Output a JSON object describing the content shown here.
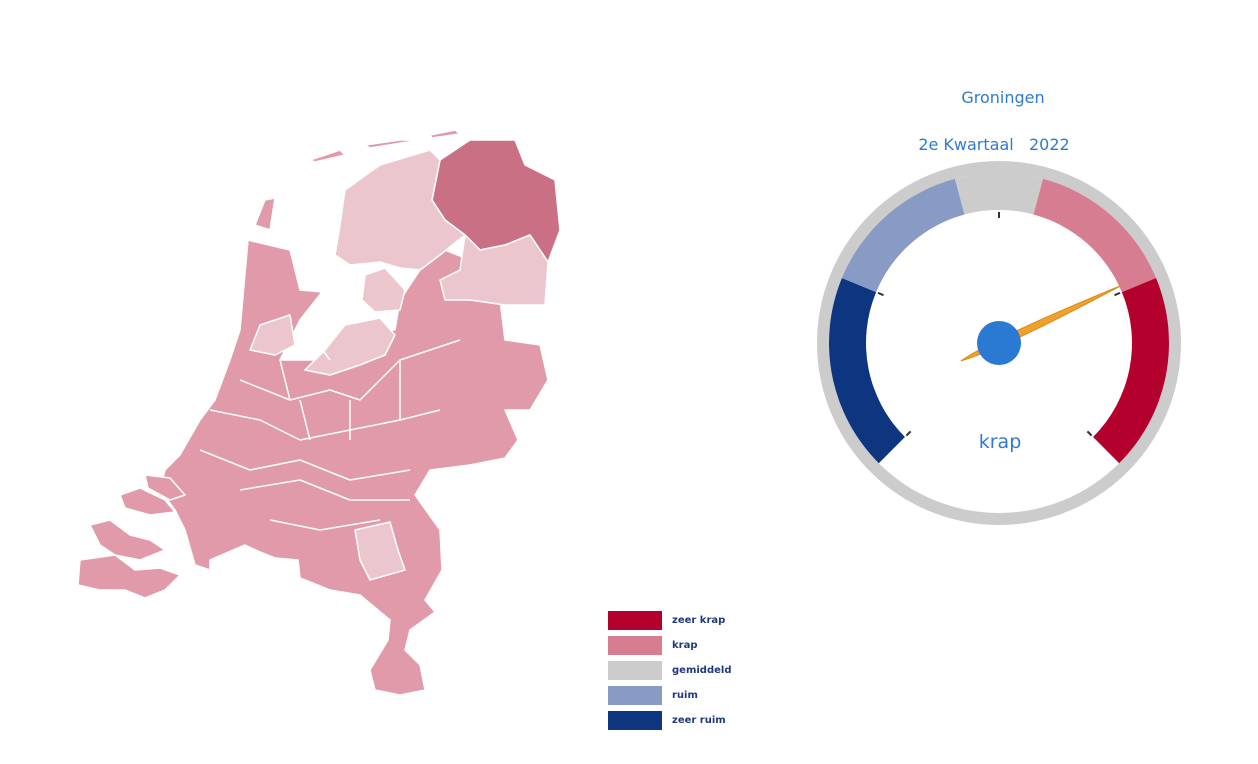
{
  "chart_data": {
    "type": "gauge",
    "title": "Groningen",
    "subtitle": "2e Kwartaal   2022",
    "value_label": "krap",
    "value_fraction": 0.74,
    "bands": [
      {
        "label": "zeer ruim",
        "from": 0,
        "to": 0.25,
        "color": "#0d3580"
      },
      {
        "label": "ruim",
        "from": 0.25,
        "to": 0.4444,
        "color": "#879bc4"
      },
      {
        "label": "gemiddeld",
        "from": 0.4444,
        "to": 0.5556,
        "color": "#cccccc"
      },
      {
        "label": "krap",
        "from": 0.5556,
        "to": 0.75,
        "color": "#d77d91"
      },
      {
        "label": "zeer krap",
        "from": 0.75,
        "to": 1,
        "color": "#b3002d"
      }
    ],
    "ticks": [
      0,
      0.25,
      0.5,
      0.75,
      1
    ],
    "map": {
      "regions": [
        {
          "name": "Groningen",
          "class": "zeer krap-ish",
          "color": "#c97085"
        },
        {
          "name": "Friesland",
          "color": "#ebc6cd"
        },
        {
          "name": "Drenthe",
          "color": "#ebc6cd"
        },
        {
          "name": "Flevoland",
          "color": "#ebc6cd"
        },
        {
          "name": "Overige",
          "color": "#e09aaa"
        }
      ]
    }
  },
  "legend": [
    {
      "label": "zeer krap",
      "color": "#b3002d"
    },
    {
      "label": "krap",
      "color": "#d77d91"
    },
    {
      "label": "gemiddeld",
      "color": "#cccccc"
    },
    {
      "label": "ruim",
      "color": "#879bc4"
    },
    {
      "label": "zeer ruim",
      "color": "#0d3580"
    }
  ]
}
